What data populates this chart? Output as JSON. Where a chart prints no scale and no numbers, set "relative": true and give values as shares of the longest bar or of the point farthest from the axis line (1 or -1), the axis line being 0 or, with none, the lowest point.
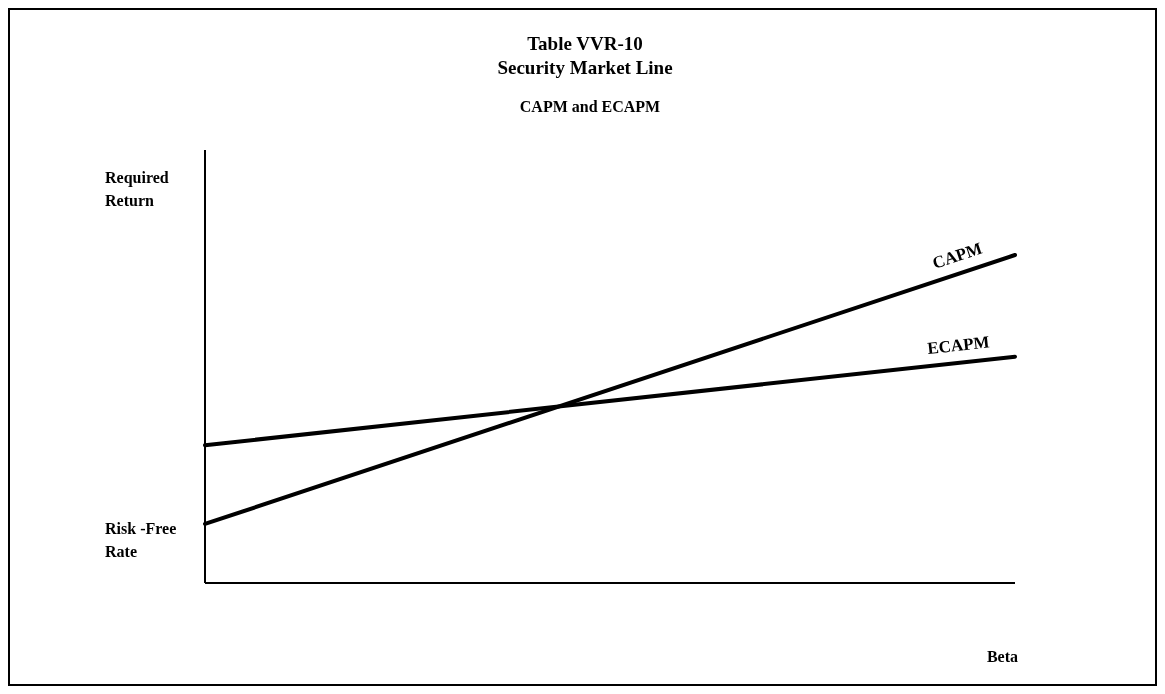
{
  "chart_data": {
    "type": "line",
    "title": "Table VVR-10\nSecurity Market Line",
    "subtitle": "CAPM and ECAPM",
    "xlabel": "Beta",
    "ylabel": "Required\nReturn",
    "relative": true,
    "categories": [
      null,
      null
    ],
    "series": [
      {
        "name": "CAPM",
        "color": "#000000",
        "values": [
          0.18,
          1
        ]
      },
      {
        "name": "ECAPM",
        "color": "#000000",
        "values": [
          0.42,
          0.69
        ]
      }
    ],
    "annotations": [
      "Risk -Free\nRate"
    ]
  }
}
